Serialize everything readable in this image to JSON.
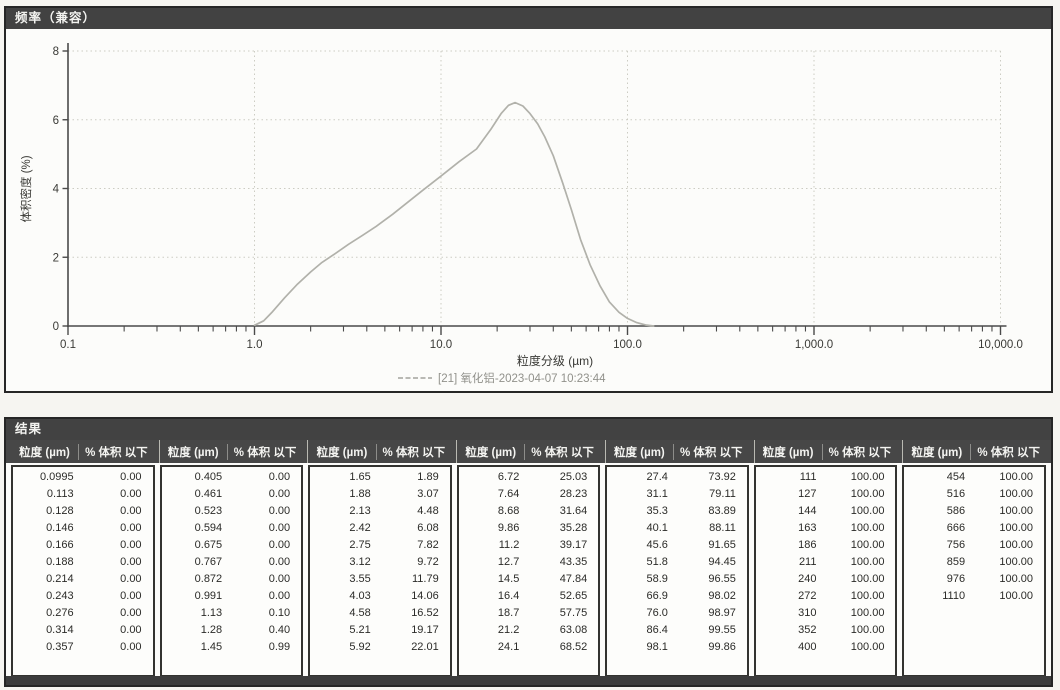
{
  "colors": {
    "titlebar": "#424242",
    "panel_border": "#262626",
    "curve": "#b1b1aa",
    "grid": "#ccccc3",
    "axis": "#4a4a4a",
    "tick_text": "#3a3a36",
    "legend_text": "#91918b"
  },
  "chart": {
    "title": "频率（兼容）",
    "ylabel": "体积密度 (%)",
    "xlabel": "粒度分级 (µm)",
    "legend": "[21] 氧化铝-2023-04-07 10:23:44",
    "x_tick_labels": [
      "0.1",
      "1.0",
      "10.0",
      "100.0",
      "1,000.0",
      "10,000.0"
    ],
    "y_tick_labels": [
      "0",
      "2",
      "4",
      "6",
      "8"
    ]
  },
  "chart_data": {
    "type": "line",
    "title": "频率（兼容）",
    "xlabel": "粒度分级 (µm)",
    "ylabel": "体积密度 (%)",
    "xscale": "log",
    "xlim": [
      0.1,
      10000
    ],
    "ylim": [
      0,
      8
    ],
    "x_major_ticks": [
      0.1,
      1,
      10,
      100,
      1000,
      10000
    ],
    "y_major_ticks": [
      0,
      2,
      4,
      6,
      8
    ],
    "grid": true,
    "legend_position": "bottom",
    "series": [
      {
        "name": "[21] 氧化铝-2023-04-07 10:23:44",
        "points": [
          [
            1.0,
            0.02
          ],
          [
            1.12,
            0.15
          ],
          [
            1.25,
            0.42
          ],
          [
            1.45,
            0.82
          ],
          [
            1.7,
            1.22
          ],
          [
            2.0,
            1.57
          ],
          [
            2.3,
            1.85
          ],
          [
            2.7,
            2.1
          ],
          [
            3.2,
            2.38
          ],
          [
            3.8,
            2.64
          ],
          [
            4.5,
            2.9
          ],
          [
            5.5,
            3.25
          ],
          [
            6.7,
            3.62
          ],
          [
            8.0,
            3.95
          ],
          [
            10.0,
            4.36
          ],
          [
            12.5,
            4.78
          ],
          [
            15.5,
            5.15
          ],
          [
            18.5,
            5.72
          ],
          [
            21.0,
            6.18
          ],
          [
            23.0,
            6.42
          ],
          [
            25.0,
            6.5
          ],
          [
            27.5,
            6.4
          ],
          [
            30.0,
            6.18
          ],
          [
            33.0,
            5.88
          ],
          [
            36.0,
            5.5
          ],
          [
            40.0,
            4.95
          ],
          [
            45.0,
            4.15
          ],
          [
            50.0,
            3.38
          ],
          [
            56.0,
            2.52
          ],
          [
            63.0,
            1.78
          ],
          [
            71.0,
            1.18
          ],
          [
            80.0,
            0.7
          ],
          [
            90.0,
            0.4
          ],
          [
            100.0,
            0.22
          ],
          [
            112.0,
            0.1
          ],
          [
            125.0,
            0.03
          ],
          [
            138.0,
            0.0
          ]
        ]
      }
    ]
  },
  "table": {
    "title": "结果",
    "size_header": "粒度 (µm)",
    "pct_header": "% 体积 以下",
    "groups": [
      [
        [
          "0.0995",
          "0.00"
        ],
        [
          "0.113",
          "0.00"
        ],
        [
          "0.128",
          "0.00"
        ],
        [
          "0.146",
          "0.00"
        ],
        [
          "0.166",
          "0.00"
        ],
        [
          "0.188",
          "0.00"
        ],
        [
          "0.214",
          "0.00"
        ],
        [
          "0.243",
          "0.00"
        ],
        [
          "0.276",
          "0.00"
        ],
        [
          "0.314",
          "0.00"
        ],
        [
          "0.357",
          "0.00"
        ]
      ],
      [
        [
          "0.405",
          "0.00"
        ],
        [
          "0.461",
          "0.00"
        ],
        [
          "0.523",
          "0.00"
        ],
        [
          "0.594",
          "0.00"
        ],
        [
          "0.675",
          "0.00"
        ],
        [
          "0.767",
          "0.00"
        ],
        [
          "0.872",
          "0.00"
        ],
        [
          "0.991",
          "0.00"
        ],
        [
          "1.13",
          "0.10"
        ],
        [
          "1.28",
          "0.40"
        ],
        [
          "1.45",
          "0.99"
        ]
      ],
      [
        [
          "1.65",
          "1.89"
        ],
        [
          "1.88",
          "3.07"
        ],
        [
          "2.13",
          "4.48"
        ],
        [
          "2.42",
          "6.08"
        ],
        [
          "2.75",
          "7.82"
        ],
        [
          "3.12",
          "9.72"
        ],
        [
          "3.55",
          "11.79"
        ],
        [
          "4.03",
          "14.06"
        ],
        [
          "4.58",
          "16.52"
        ],
        [
          "5.21",
          "19.17"
        ],
        [
          "5.92",
          "22.01"
        ]
      ],
      [
        [
          "6.72",
          "25.03"
        ],
        [
          "7.64",
          "28.23"
        ],
        [
          "8.68",
          "31.64"
        ],
        [
          "9.86",
          "35.28"
        ],
        [
          "11.2",
          "39.17"
        ],
        [
          "12.7",
          "43.35"
        ],
        [
          "14.5",
          "47.84"
        ],
        [
          "16.4",
          "52.65"
        ],
        [
          "18.7",
          "57.75"
        ],
        [
          "21.2",
          "63.08"
        ],
        [
          "24.1",
          "68.52"
        ]
      ],
      [
        [
          "27.4",
          "73.92"
        ],
        [
          "31.1",
          "79.11"
        ],
        [
          "35.3",
          "83.89"
        ],
        [
          "40.1",
          "88.11"
        ],
        [
          "45.6",
          "91.65"
        ],
        [
          "51.8",
          "94.45"
        ],
        [
          "58.9",
          "96.55"
        ],
        [
          "66.9",
          "98.02"
        ],
        [
          "76.0",
          "98.97"
        ],
        [
          "86.4",
          "99.55"
        ],
        [
          "98.1",
          "99.86"
        ]
      ],
      [
        [
          "111",
          "100.00"
        ],
        [
          "127",
          "100.00"
        ],
        [
          "144",
          "100.00"
        ],
        [
          "163",
          "100.00"
        ],
        [
          "186",
          "100.00"
        ],
        [
          "211",
          "100.00"
        ],
        [
          "240",
          "100.00"
        ],
        [
          "272",
          "100.00"
        ],
        [
          "310",
          "100.00"
        ],
        [
          "352",
          "100.00"
        ],
        [
          "400",
          "100.00"
        ]
      ],
      [
        [
          "454",
          "100.00"
        ],
        [
          "516",
          "100.00"
        ],
        [
          "586",
          "100.00"
        ],
        [
          "666",
          "100.00"
        ],
        [
          "756",
          "100.00"
        ],
        [
          "859",
          "100.00"
        ],
        [
          "976",
          "100.00"
        ],
        [
          "1110",
          "100.00"
        ]
      ]
    ]
  }
}
